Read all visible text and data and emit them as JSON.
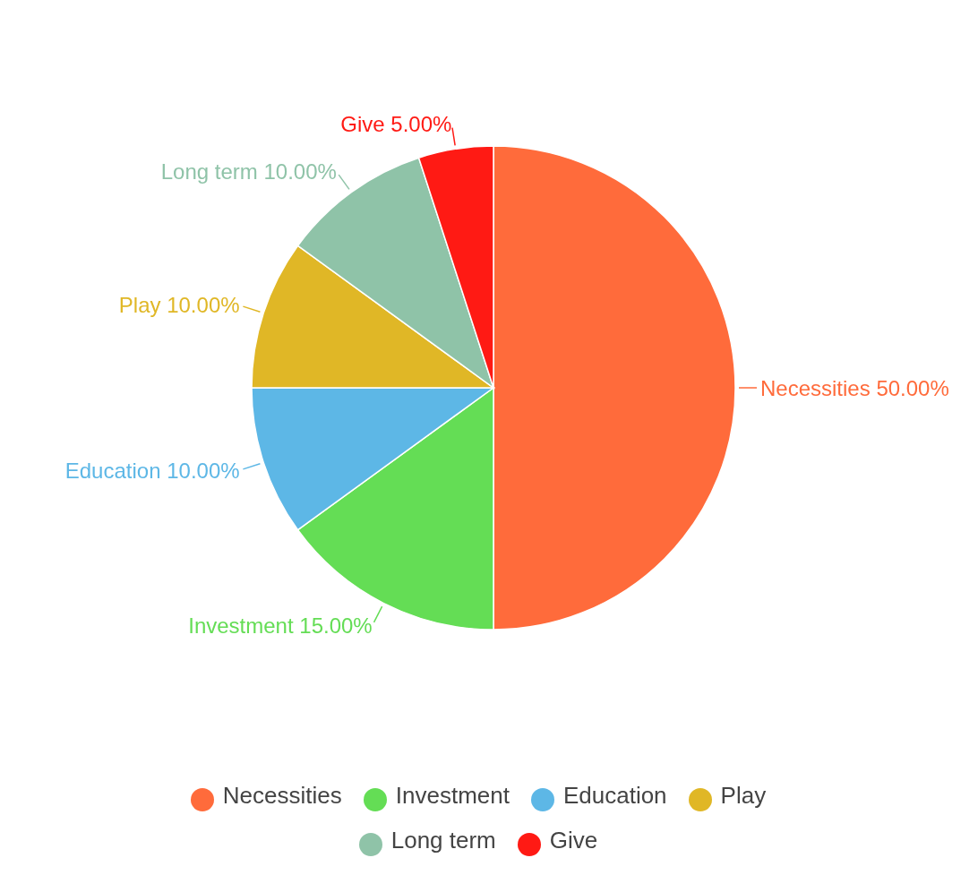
{
  "chart_data": {
    "type": "pie",
    "categories": [
      "Necessities",
      "Investment",
      "Education",
      "Play",
      "Long term",
      "Give"
    ],
    "values": [
      50,
      15,
      10,
      10,
      10,
      5
    ],
    "colors": [
      "#ff6b3b",
      "#64dd55",
      "#5db7e6",
      "#e0b726",
      "#8fc3a8",
      "#ff1a14"
    ],
    "value_labels": [
      "50.00%",
      "15.00%",
      "10.00%",
      "10.00%",
      "10.00%",
      "5.00%"
    ],
    "legend": "bottom"
  }
}
